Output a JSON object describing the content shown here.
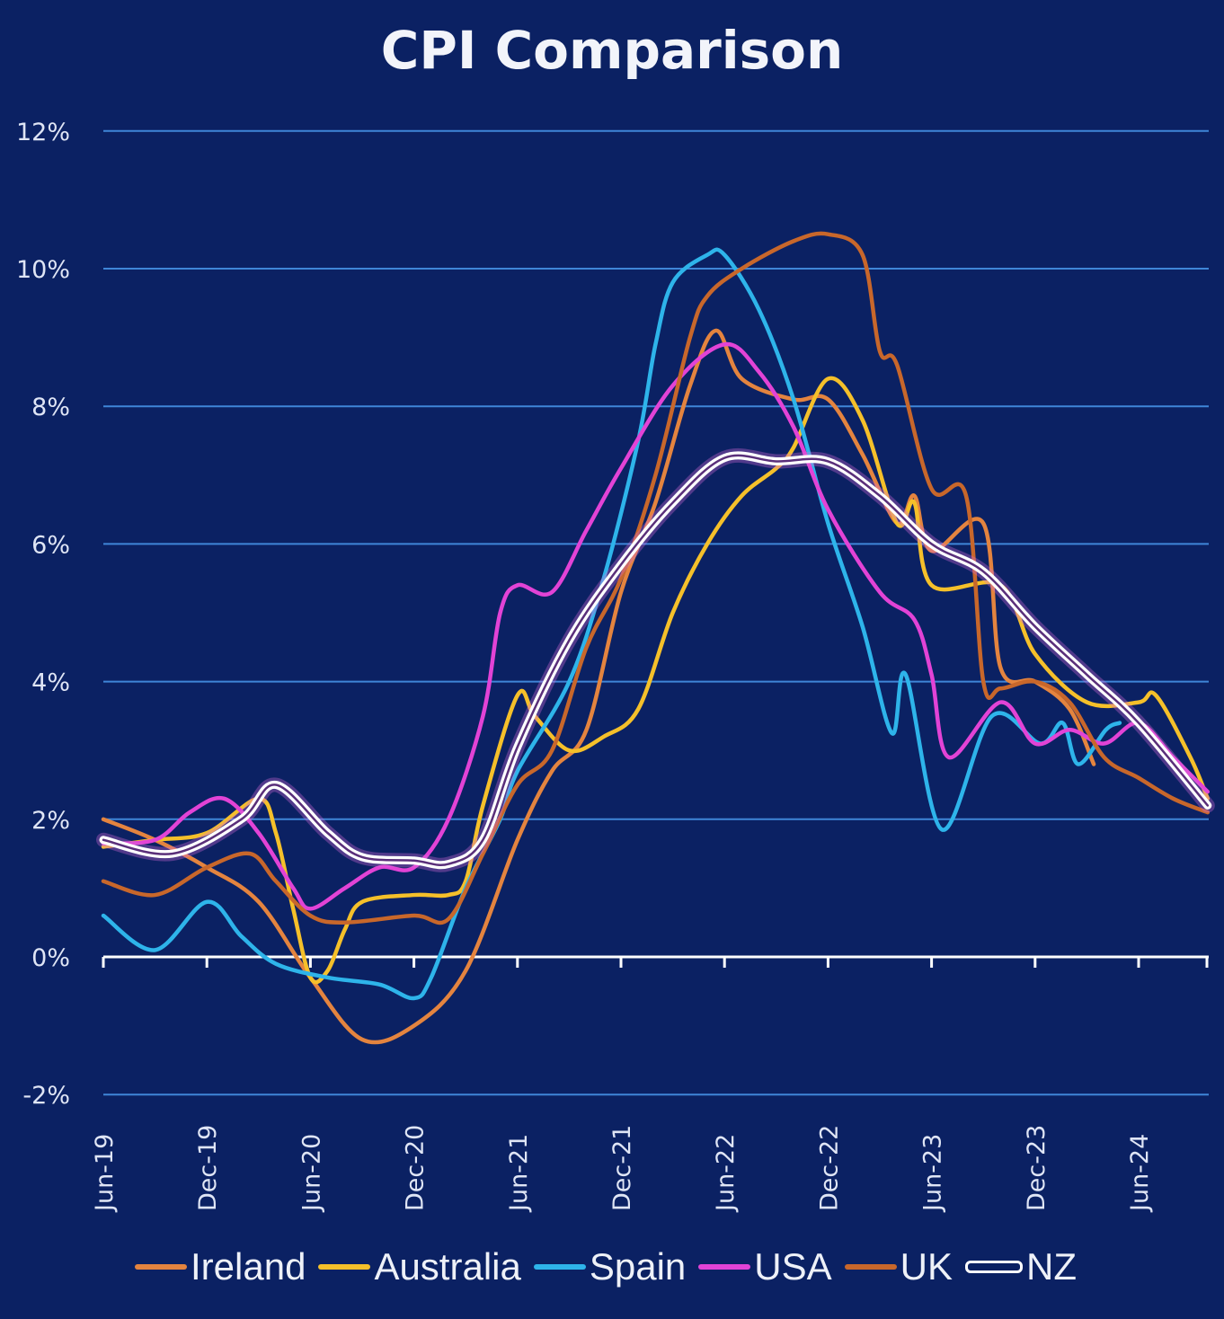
{
  "chart_data": {
    "type": "line",
    "title": "CPI Comparison",
    "xlabel": "",
    "ylabel": "",
    "x_unit": "months since Jun-19",
    "x_range": [
      0,
      64
    ],
    "ylim": [
      -2,
      12
    ],
    "yticks": [
      12,
      10,
      8,
      6,
      4,
      2,
      0,
      -2
    ],
    "ytick_labels": [
      "12%",
      "10%",
      "8%",
      "6%",
      "4%",
      "2%",
      "0%",
      "-2%"
    ],
    "xtick_labels": [
      "Jun-19",
      "Dec-19",
      "Jun-20",
      "Dec-20",
      "Jun-21",
      "Dec-21",
      "Jun-22",
      "Dec-22",
      "Jun-23",
      "Dec-23",
      "Jun-24"
    ],
    "grid": true,
    "legend_placement": "bottom",
    "series": [
      {
        "name": "Ireland",
        "color": "#e4843f",
        "points": [
          [
            0,
            2.0
          ],
          [
            3,
            1.7
          ],
          [
            6,
            1.3
          ],
          [
            9,
            0.8
          ],
          [
            12,
            -0.3
          ],
          [
            15,
            -1.2
          ],
          [
            18,
            -1.0
          ],
          [
            21,
            -0.2
          ],
          [
            24,
            1.7
          ],
          [
            26,
            2.7
          ],
          [
            28,
            3.3
          ],
          [
            30,
            5.3
          ],
          [
            32,
            6.6
          ],
          [
            34,
            8.3
          ],
          [
            35.5,
            9.1
          ],
          [
            37,
            8.4
          ],
          [
            40,
            8.1
          ],
          [
            42,
            8.1
          ],
          [
            44,
            7.3
          ],
          [
            46,
            6.3
          ],
          [
            47,
            6.7
          ],
          [
            48,
            5.9
          ],
          [
            51,
            6.3
          ],
          [
            52,
            4.2
          ],
          [
            54,
            4.0
          ],
          [
            56,
            3.6
          ],
          [
            57.4,
            2.8
          ]
        ]
      },
      {
        "name": "Australia",
        "color": "#f5c02a",
        "points": [
          [
            0,
            1.6
          ],
          [
            3,
            1.7
          ],
          [
            6,
            1.8
          ],
          [
            9,
            2.3
          ],
          [
            10,
            1.8
          ],
          [
            11,
            0.7
          ],
          [
            12,
            -0.3
          ],
          [
            13,
            -0.2
          ],
          [
            14,
            0.4
          ],
          [
            15,
            0.8
          ],
          [
            18,
            0.9
          ],
          [
            20,
            0.9
          ],
          [
            21,
            1.1
          ],
          [
            22,
            2.2
          ],
          [
            24,
            3.8
          ],
          [
            25,
            3.5
          ],
          [
            27,
            3.0
          ],
          [
            29,
            3.2
          ],
          [
            31,
            3.6
          ],
          [
            33,
            5.0
          ],
          [
            35,
            6.0
          ],
          [
            37,
            6.7
          ],
          [
            39,
            7.1
          ],
          [
            40,
            7.4
          ],
          [
            42,
            8.4
          ],
          [
            44,
            7.8
          ],
          [
            46,
            6.3
          ],
          [
            47,
            6.6
          ],
          [
            48,
            5.4
          ],
          [
            52,
            5.4
          ],
          [
            54,
            4.4
          ],
          [
            57,
            3.7
          ],
          [
            60,
            3.7
          ],
          [
            61,
            3.8
          ],
          [
            63,
            2.9
          ],
          [
            64,
            2.3
          ]
        ]
      },
      {
        "name": "Spain",
        "color": "#2eb4ea",
        "points": [
          [
            0,
            0.6
          ],
          [
            3,
            0.1
          ],
          [
            6,
            0.8
          ],
          [
            8,
            0.3
          ],
          [
            10,
            -0.1
          ],
          [
            13,
            -0.3
          ],
          [
            16,
            -0.4
          ],
          [
            18,
            -0.6
          ],
          [
            19,
            -0.3
          ],
          [
            21,
            1.0
          ],
          [
            23,
            2.0
          ],
          [
            24,
            2.7
          ],
          [
            27,
            4.0
          ],
          [
            29,
            5.5
          ],
          [
            31,
            7.5
          ],
          [
            32,
            8.9
          ],
          [
            33,
            9.8
          ],
          [
            35,
            10.2
          ],
          [
            36,
            10.2
          ],
          [
            38,
            9.4
          ],
          [
            40,
            8.1
          ],
          [
            42,
            6.3
          ],
          [
            44,
            4.8
          ],
          [
            45.7,
            3.25
          ],
          [
            46.5,
            4.1
          ],
          [
            48.6,
            1.85
          ],
          [
            51.5,
            3.5
          ],
          [
            54.3,
            3.1
          ],
          [
            55.6,
            3.4
          ],
          [
            56.5,
            2.8
          ],
          [
            58.1,
            3.3
          ],
          [
            58.9,
            3.4
          ]
        ]
      },
      {
        "name": "USA",
        "color": "#e243d6",
        "points": [
          [
            0,
            1.65
          ],
          [
            3,
            1.7
          ],
          [
            5,
            2.1
          ],
          [
            7,
            2.3
          ],
          [
            9,
            1.8
          ],
          [
            11,
            1.0
          ],
          [
            12,
            0.7
          ],
          [
            14,
            1.0
          ],
          [
            16,
            1.3
          ],
          [
            18,
            1.3
          ],
          [
            20,
            2.0
          ],
          [
            22,
            3.5
          ],
          [
            23,
            5.0
          ],
          [
            24,
            5.4
          ],
          [
            26,
            5.3
          ],
          [
            28,
            6.2
          ],
          [
            30,
            7.1
          ],
          [
            33,
            8.3
          ],
          [
            36,
            8.9
          ],
          [
            38,
            8.5
          ],
          [
            40,
            7.7
          ],
          [
            42,
            6.5
          ],
          [
            45,
            5.3
          ],
          [
            47,
            4.9
          ],
          [
            48,
            4.1
          ],
          [
            49,
            2.9
          ],
          [
            52,
            3.7
          ],
          [
            54,
            3.1
          ],
          [
            56,
            3.3
          ],
          [
            58,
            3.1
          ],
          [
            60,
            3.4
          ],
          [
            62,
            2.9
          ],
          [
            64,
            2.4
          ]
        ]
      },
      {
        "name": "UK",
        "color": "#c8672b",
        "points": [
          [
            0,
            1.1
          ],
          [
            3,
            0.9
          ],
          [
            6,
            1.3
          ],
          [
            8.5,
            1.5
          ],
          [
            10,
            1.1
          ],
          [
            12,
            0.6
          ],
          [
            14,
            0.5
          ],
          [
            18,
            0.6
          ],
          [
            20,
            0.55
          ],
          [
            22,
            1.5
          ],
          [
            24,
            2.5
          ],
          [
            26,
            3.0
          ],
          [
            28,
            4.5
          ],
          [
            30,
            5.5
          ],
          [
            32,
            7.0
          ],
          [
            34,
            9.0
          ],
          [
            35,
            9.6
          ],
          [
            37,
            10.0
          ],
          [
            40,
            10.4
          ],
          [
            42,
            10.5
          ],
          [
            44,
            10.2
          ],
          [
            45,
            8.8
          ],
          [
            46,
            8.6
          ],
          [
            48,
            6.8
          ],
          [
            50,
            6.7
          ],
          [
            51,
            4.0
          ],
          [
            52,
            3.9
          ],
          [
            54,
            4.0
          ],
          [
            56,
            3.7
          ],
          [
            58,
            2.9
          ],
          [
            60,
            2.6
          ],
          [
            62,
            2.3
          ],
          [
            64,
            2.1
          ]
        ]
      },
      {
        "name": "NZ",
        "color": "#ffffff",
        "points": [
          [
            0,
            1.7
          ],
          [
            4,
            1.5
          ],
          [
            8,
            2.0
          ],
          [
            10,
            2.5
          ],
          [
            13,
            1.8
          ],
          [
            15,
            1.45
          ],
          [
            18,
            1.4
          ],
          [
            20,
            1.35
          ],
          [
            22,
            1.7
          ],
          [
            24,
            3.05
          ],
          [
            27,
            4.6
          ],
          [
            30,
            5.7
          ],
          [
            33,
            6.6
          ],
          [
            36,
            7.25
          ],
          [
            39,
            7.2
          ],
          [
            42,
            7.2
          ],
          [
            45,
            6.7
          ],
          [
            48,
            6.0
          ],
          [
            51,
            5.6
          ],
          [
            54,
            4.8
          ],
          [
            57,
            4.1
          ],
          [
            60,
            3.4
          ],
          [
            64,
            2.2
          ]
        ]
      }
    ]
  }
}
